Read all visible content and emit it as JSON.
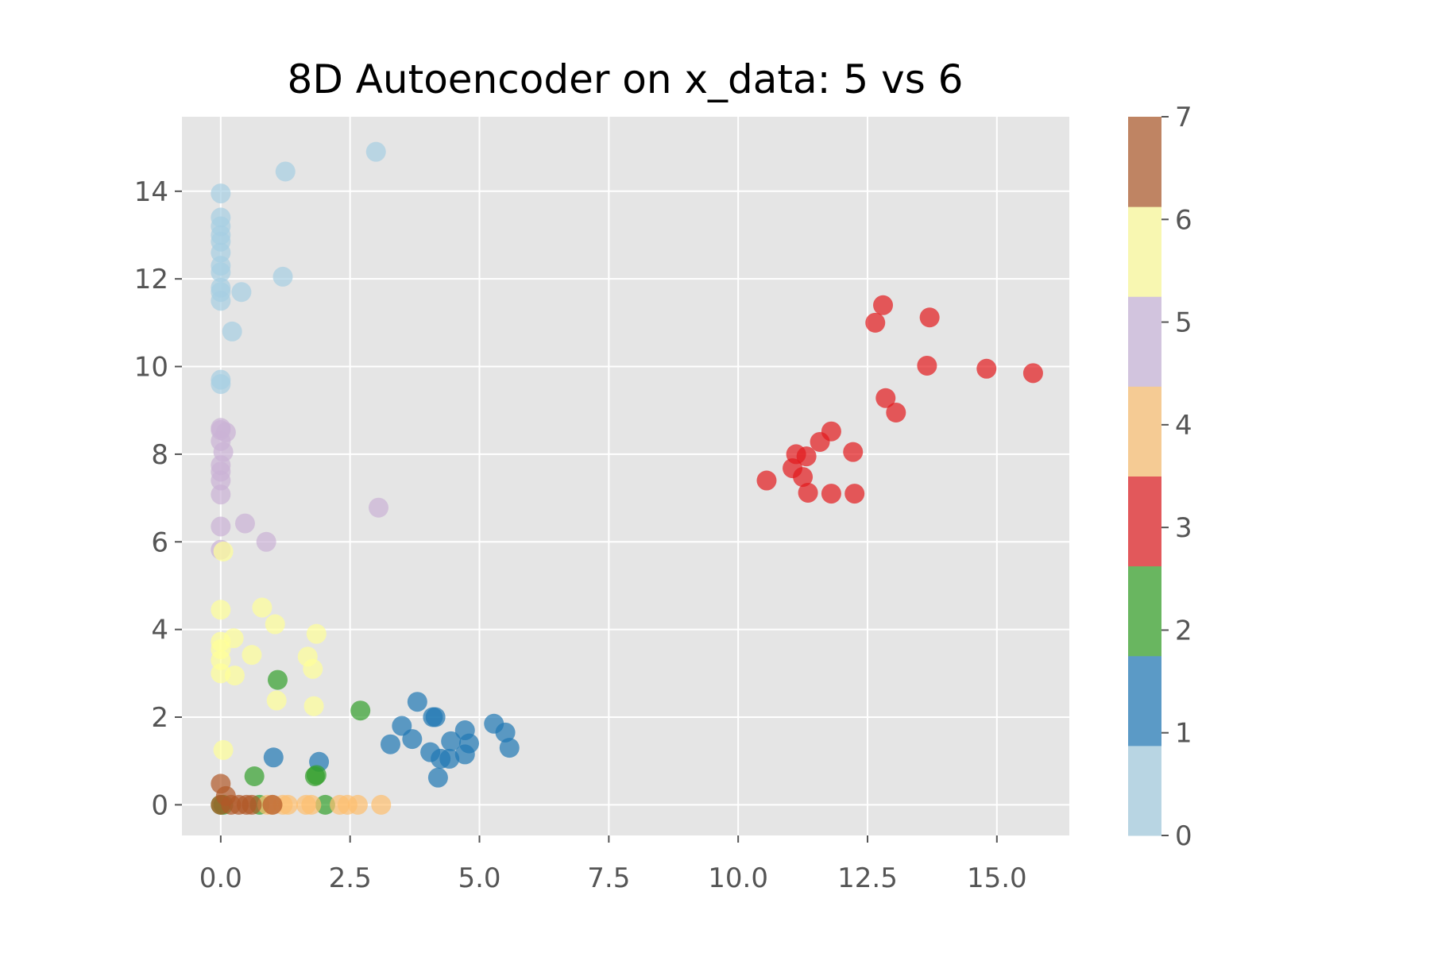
{
  "chart_data": {
    "type": "scatter",
    "title": "8D Autoencoder on x_data: 5 vs 6",
    "xlabel": "",
    "ylabel": "",
    "xlim": [
      -0.75,
      16.4
    ],
    "ylim": [
      -0.7,
      15.7
    ],
    "xticks": [
      0.0,
      2.5,
      5.0,
      7.5,
      10.0,
      12.5,
      15.0
    ],
    "xtick_labels": [
      "0.0",
      "2.5",
      "5.0",
      "7.5",
      "10.0",
      "12.5",
      "15.0"
    ],
    "yticks": [
      0,
      2,
      4,
      6,
      8,
      10,
      12,
      14
    ],
    "ytick_labels": [
      "0",
      "2",
      "4",
      "6",
      "8",
      "10",
      "12",
      "14"
    ],
    "grid": true,
    "background": "#e5e5e5",
    "colorbar": {
      "range": [
        0,
        7
      ],
      "ticks": [
        0,
        1,
        2,
        3,
        4,
        5,
        6,
        7
      ],
      "tick_labels": [
        "0",
        "1",
        "2",
        "3",
        "4",
        "5",
        "6",
        "7"
      ],
      "colors": [
        "#b8d5e3",
        "#5b9ac6",
        "#69b660",
        "#e2585b",
        "#f5cb94",
        "#d2c4de",
        "#f8f7b1",
        "#bf8463"
      ]
    },
    "series": [
      {
        "class": 0,
        "color": "#a6cee3",
        "points": [
          [
            3.0,
            14.9
          ],
          [
            1.25,
            14.45
          ],
          [
            0.0,
            13.95
          ],
          [
            0.0,
            13.4
          ],
          [
            0.0,
            13.2
          ],
          [
            0.0,
            13.0
          ],
          [
            0.0,
            12.85
          ],
          [
            0.0,
            12.6
          ],
          [
            0.0,
            12.3
          ],
          [
            0.0,
            12.15
          ],
          [
            0.0,
            11.8
          ],
          [
            0.0,
            11.7
          ],
          [
            0.0,
            11.5
          ],
          [
            1.2,
            12.05
          ],
          [
            0.4,
            11.7
          ],
          [
            0.22,
            10.8
          ],
          [
            0.0,
            9.7
          ],
          [
            0.0,
            9.6
          ]
        ]
      },
      {
        "class": 1,
        "color": "#1f78b4",
        "points": [
          [
            3.8,
            2.35
          ],
          [
            4.1,
            2.0
          ],
          [
            4.15,
            2.0
          ],
          [
            3.5,
            1.8
          ],
          [
            3.7,
            1.5
          ],
          [
            3.28,
            1.38
          ],
          [
            4.05,
            1.2
          ],
          [
            4.25,
            1.05
          ],
          [
            4.42,
            1.05
          ],
          [
            4.45,
            1.45
          ],
          [
            4.72,
            1.7
          ],
          [
            4.8,
            1.4
          ],
          [
            4.72,
            1.15
          ],
          [
            5.28,
            1.85
          ],
          [
            5.5,
            1.65
          ],
          [
            5.58,
            1.3
          ],
          [
            4.2,
            0.62
          ],
          [
            1.02,
            1.08
          ],
          [
            1.9,
            0.98
          ]
        ]
      },
      {
        "class": 2,
        "color": "#33a02c",
        "points": [
          [
            1.1,
            2.85
          ],
          [
            2.7,
            2.15
          ],
          [
            1.85,
            0.68
          ],
          [
            1.82,
            0.65
          ],
          [
            0.65,
            0.65
          ],
          [
            2.02,
            0.0
          ],
          [
            0.75,
            0.0
          ],
          [
            0.0,
            0.0
          ],
          [
            0.05,
            0.0
          ]
        ]
      },
      {
        "class": 3,
        "color": "#e31a1c",
        "points": [
          [
            12.8,
            11.4
          ],
          [
            12.65,
            11.0
          ],
          [
            13.7,
            11.12
          ],
          [
            13.65,
            10.02
          ],
          [
            14.8,
            9.95
          ],
          [
            15.7,
            9.85
          ],
          [
            12.85,
            9.28
          ],
          [
            13.05,
            8.95
          ],
          [
            11.8,
            8.52
          ],
          [
            11.58,
            8.28
          ],
          [
            12.22,
            8.05
          ],
          [
            11.12,
            8.0
          ],
          [
            11.32,
            7.95
          ],
          [
            11.05,
            7.68
          ],
          [
            11.25,
            7.48
          ],
          [
            10.55,
            7.4
          ],
          [
            11.35,
            7.12
          ],
          [
            11.8,
            7.1
          ],
          [
            12.25,
            7.1
          ]
        ]
      },
      {
        "class": 4,
        "color": "#fdbf6f",
        "points": [
          [
            1.2,
            0.0
          ],
          [
            1.3,
            0.0
          ],
          [
            1.65,
            0.0
          ],
          [
            1.75,
            0.0
          ],
          [
            2.3,
            0.0
          ],
          [
            2.45,
            0.0
          ],
          [
            2.65,
            0.0
          ],
          [
            3.1,
            0.0
          ],
          [
            0.9,
            0.0
          ],
          [
            1.0,
            0.0
          ]
        ]
      },
      {
        "class": 5,
        "color": "#cab2d6",
        "points": [
          [
            0.0,
            8.6
          ],
          [
            0.0,
            8.55
          ],
          [
            0.1,
            8.5
          ],
          [
            0.0,
            8.3
          ],
          [
            0.05,
            8.05
          ],
          [
            0.0,
            7.75
          ],
          [
            0.0,
            7.6
          ],
          [
            0.0,
            7.4
          ],
          [
            0.0,
            7.08
          ],
          [
            3.05,
            6.78
          ],
          [
            0.0,
            6.35
          ],
          [
            0.47,
            6.42
          ],
          [
            0.88,
            6.0
          ],
          [
            0.0,
            5.82
          ]
        ]
      },
      {
        "class": 6,
        "color": "#ffff99",
        "points": [
          [
            0.05,
            5.78
          ],
          [
            0.0,
            4.45
          ],
          [
            0.8,
            4.5
          ],
          [
            1.05,
            4.12
          ],
          [
            1.85,
            3.9
          ],
          [
            0.0,
            3.72
          ],
          [
            0.25,
            3.8
          ],
          [
            0.0,
            3.55
          ],
          [
            0.6,
            3.42
          ],
          [
            1.68,
            3.38
          ],
          [
            0.0,
            3.3
          ],
          [
            1.78,
            3.1
          ],
          [
            0.0,
            3.0
          ],
          [
            0.27,
            2.95
          ],
          [
            1.08,
            2.38
          ],
          [
            1.8,
            2.25
          ],
          [
            0.05,
            1.25
          ]
        ]
      },
      {
        "class": 7,
        "color": "#b15928",
        "points": [
          [
            0.0,
            0.48
          ],
          [
            0.1,
            0.2
          ],
          [
            0.0,
            0.0
          ],
          [
            0.2,
            0.0
          ],
          [
            0.35,
            0.0
          ],
          [
            0.5,
            0.0
          ],
          [
            0.6,
            0.0
          ],
          [
            1.0,
            0.0
          ]
        ]
      }
    ]
  }
}
